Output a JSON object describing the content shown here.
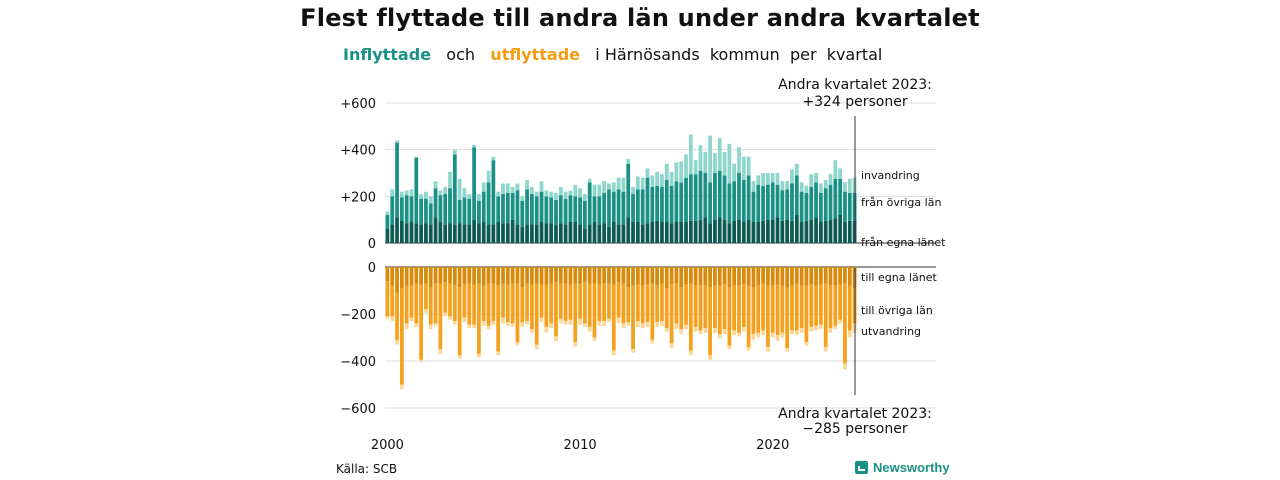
{
  "header": {
    "title": "Flest flyttade till andra län under andra kvartalet",
    "subtitle_in": "Inflyttade",
    "subtitle_and": "och",
    "subtitle_out": "utflyttade",
    "subtitle_rest": "i Härnösands  kommun  per  kvartal"
  },
  "annotations": {
    "top_line1": "Andra kvartalet 2023:",
    "top_line2": "+324 personer",
    "bottom_line1": "Andra kvartalet 2023:",
    "bottom_line2": "−285 personer"
  },
  "footer": {
    "source": "Källa: SCB",
    "brand": "Newsworthy"
  },
  "colors": {
    "in_own": "#0d5b52",
    "in_other": "#1a9184",
    "in_immig": "#8fd6cd",
    "out_own": "#d98a0b",
    "out_other": "#f6a11e",
    "out_emig": "#fbd79a",
    "grid": "#dddddd"
  },
  "chart_data": {
    "type": "bar",
    "x_start_year": 2000,
    "quarters_per_year": 4,
    "x_ticks": [
      "2000",
      "2010",
      "2020"
    ],
    "y_ticks_top": [
      "+600",
      "+400",
      "+200",
      "0"
    ],
    "y_ticks_bottom": [
      "0",
      "−200",
      "−400",
      "−600"
    ],
    "ylim_top": [
      0,
      600
    ],
    "ylim_bottom": [
      -600,
      0
    ],
    "grid": true,
    "series_in": [
      {
        "name": "från egna länet",
        "values": [
          60,
          80,
          110,
          95,
          85,
          90,
          85,
          80,
          85,
          80,
          110,
          90,
          80,
          85,
          80,
          85,
          80,
          80,
          100,
          85,
          90,
          80,
          80,
          90,
          85,
          85,
          100,
          80,
          70,
          80,
          80,
          80,
          90,
          85,
          85,
          75,
          85,
          80,
          90,
          90,
          80,
          60,
          80,
          90,
          80,
          85,
          70,
          90,
          80,
          80,
          110,
          90,
          90,
          80,
          85,
          90,
          95,
          90,
          90,
          85,
          90,
          90,
          90,
          95,
          95,
          100,
          110,
          85,
          100,
          110,
          100,
          85,
          95,
          100,
          90,
          100,
          90,
          90,
          95,
          100,
          100,
          110,
          95,
          100,
          95,
          120,
          90,
          95,
          100,
          110,
          90,
          95,
          100,
          105,
          120,
          90,
          95,
          95
        ]
      },
      {
        "name": "från övriga län",
        "values": [
          60,
          120,
          320,
          100,
          120,
          110,
          280,
          110,
          105,
          90,
          125,
          115,
          130,
          150,
          300,
          100,
          115,
          110,
          310,
          95,
          130,
          180,
          275,
          110,
          125,
          130,
          115,
          145,
          110,
          150,
          130,
          120,
          130,
          115,
          110,
          110,
          120,
          110,
          115,
          110,
          115,
          120,
          180,
          110,
          120,
          130,
          160,
          130,
          150,
          140,
          230,
          120,
          140,
          150,
          195,
          150,
          150,
          150,
          180,
          160,
          175,
          170,
          190,
          200,
          200,
          210,
          190,
          175,
          200,
          200,
          190,
          170,
          170,
          200,
          180,
          190,
          130,
          160,
          150,
          150,
          160,
          140,
          130,
          130,
          160,
          170,
          130,
          120,
          140,
          150,
          125,
          140,
          150,
          170,
          155,
          130,
          120,
          120
        ]
      },
      {
        "name": "invandring",
        "values": [
          15,
          30,
          10,
          25,
          20,
          30,
          5,
          20,
          30,
          30,
          30,
          20,
          30,
          70,
          20,
          90,
          40,
          20,
          10,
          30,
          40,
          50,
          15,
          20,
          45,
          40,
          25,
          30,
          20,
          40,
          30,
          20,
          45,
          25,
          25,
          30,
          35,
          30,
          20,
          50,
          40,
          30,
          15,
          50,
          50,
          50,
          25,
          40,
          50,
          60,
          20,
          30,
          55,
          50,
          40,
          50,
          60,
          55,
          70,
          60,
          80,
          90,
          100,
          170,
          60,
          110,
          90,
          200,
          85,
          140,
          100,
          170,
          75,
          110,
          100,
          80,
          45,
          40,
          55,
          50,
          40,
          50,
          40,
          35,
          60,
          50,
          40,
          30,
          55,
          40,
          40,
          35,
          45,
          80,
          45,
          40,
          60,
          65
        ]
      }
    ],
    "series_out": [
      {
        "name": "till egna länet",
        "values": [
          60,
          80,
          110,
          90,
          80,
          80,
          70,
          75,
          70,
          85,
          70,
          70,
          65,
          70,
          80,
          85,
          75,
          70,
          75,
          70,
          80,
          70,
          70,
          80,
          70,
          75,
          70,
          70,
          85,
          70,
          75,
          70,
          75,
          75,
          70,
          65,
          70,
          70,
          75,
          70,
          70,
          65,
          70,
          70,
          75,
          70,
          70,
          75,
          65,
          70,
          85,
          80,
          75,
          80,
          75,
          70,
          80,
          70,
          90,
          75,
          70,
          85,
          75,
          70,
          80,
          80,
          80,
          85,
          80,
          80,
          75,
          85,
          80,
          80,
          75,
          80,
          85,
          80,
          70,
          80,
          80,
          75,
          80,
          85,
          80,
          70,
          80,
          80,
          75,
          80,
          75,
          70,
          80,
          80,
          75,
          70,
          80,
          90
        ]
      },
      {
        "name": "till övriga län",
        "values": [
          150,
          130,
          200,
          410,
          160,
          135,
          170,
          320,
          110,
          160,
          170,
          280,
          130,
          140,
          150,
          290,
          140,
          175,
          170,
          300,
          150,
          180,
          160,
          280,
          145,
          160,
          170,
          250,
          150,
          160,
          190,
          260,
          140,
          180,
          170,
          230,
          150,
          160,
          150,
          250,
          150,
          175,
          185,
          230,
          155,
          160,
          150,
          280,
          150,
          170,
          150,
          270,
          155,
          160,
          160,
          240,
          155,
          160,
          170,
          250,
          170,
          180,
          170,
          285,
          175,
          190,
          180,
          290,
          180,
          205,
          190,
          250,
          190,
          200,
          180,
          260,
          200,
          200,
          200,
          260,
          200,
          215,
          200,
          260,
          190,
          200,
          180,
          240,
          180,
          170,
          170,
          270,
          180,
          170,
          150,
          340,
          190,
          150
        ]
      },
      {
        "name": "utvandring",
        "values": [
          10,
          20,
          20,
          20,
          25,
          15,
          15,
          10,
          15,
          20,
          10,
          20,
          15,
          15,
          15,
          15,
          20,
          15,
          15,
          15,
          20,
          15,
          15,
          15,
          25,
          15,
          15,
          15,
          20,
          15,
          15,
          20,
          20,
          25,
          20,
          20,
          20,
          15,
          20,
          20,
          25,
          15,
          20,
          15,
          20,
          20,
          15,
          20,
          25,
          20,
          15,
          15,
          25,
          20,
          20,
          15,
          20,
          20,
          15,
          20,
          25,
          20,
          20,
          20,
          20,
          15,
          20,
          20,
          20,
          20,
          20,
          15,
          20,
          15,
          20,
          15,
          25,
          20,
          20,
          20,
          20,
          25,
          20,
          15,
          15,
          20,
          20,
          15,
          20,
          20,
          20,
          20,
          20,
          15,
          15,
          25,
          30,
          40
        ]
      }
    ]
  }
}
